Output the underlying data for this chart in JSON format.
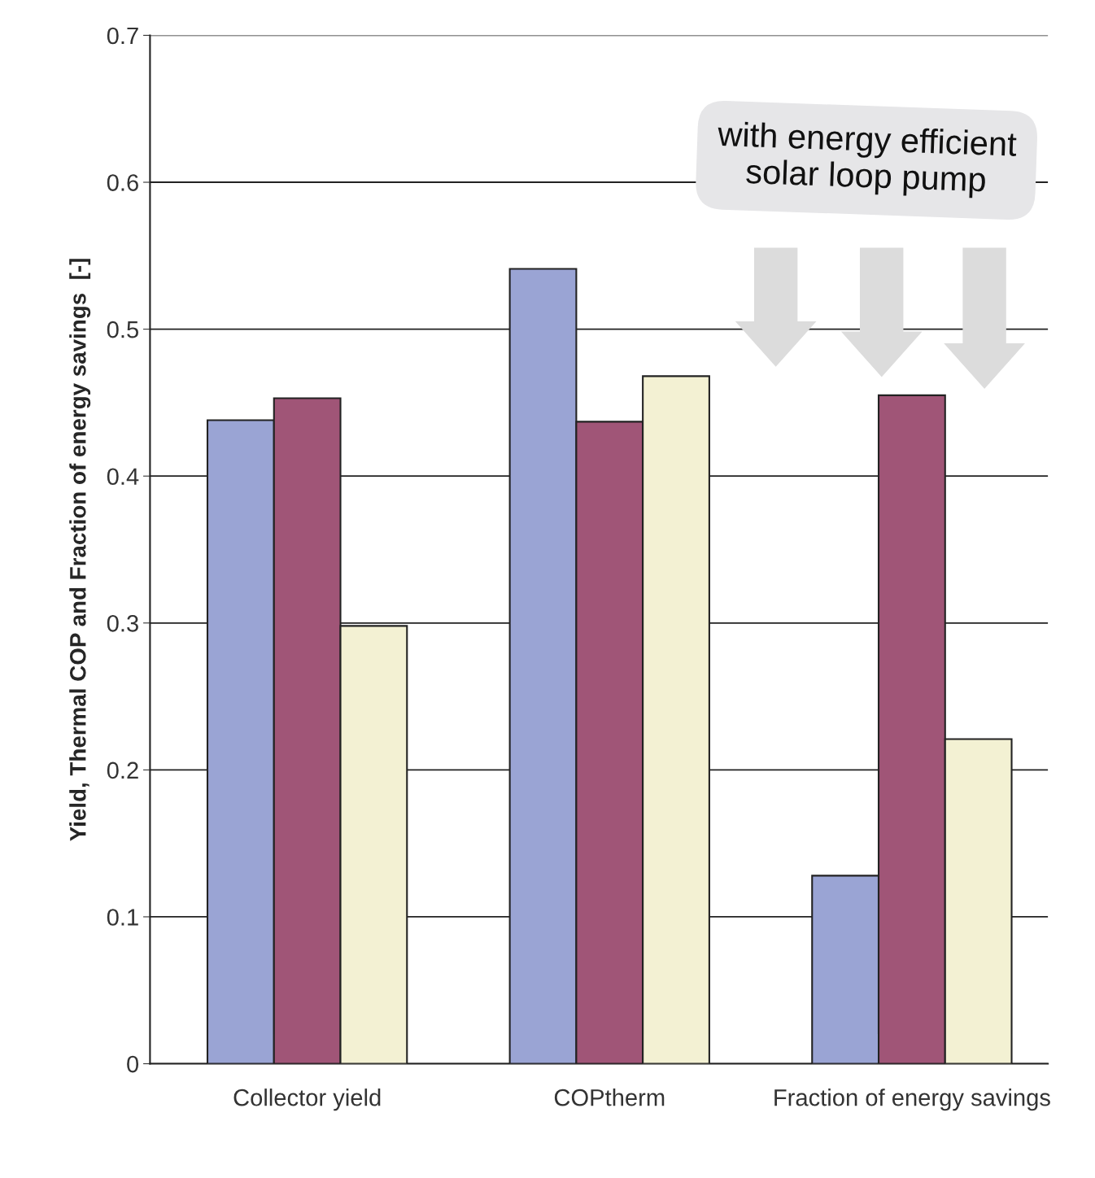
{
  "chart_data": {
    "type": "bar",
    "ylabel": "Yield, Thermal COP and Fraction of energy savings  [-]",
    "categories": [
      "Collector yield",
      "COPtherm",
      "Fraction of energy savings"
    ],
    "series": [
      {
        "color": "#9aa4d4",
        "values": [
          0.438,
          0.541,
          0.128
        ]
      },
      {
        "color": "#a05577",
        "values": [
          0.453,
          0.437,
          0.455
        ]
      },
      {
        "color": "#f3f1d3",
        "values": [
          0.298,
          0.468,
          0.221
        ]
      }
    ],
    "ylim": [
      0,
      0.7
    ],
    "yticks": [
      0,
      0.1,
      0.2,
      0.3,
      0.4,
      0.5,
      0.6,
      0.7
    ],
    "grid": "y",
    "legend": false,
    "annotations": [
      "with energy efficient\nsolar loop pump"
    ]
  }
}
